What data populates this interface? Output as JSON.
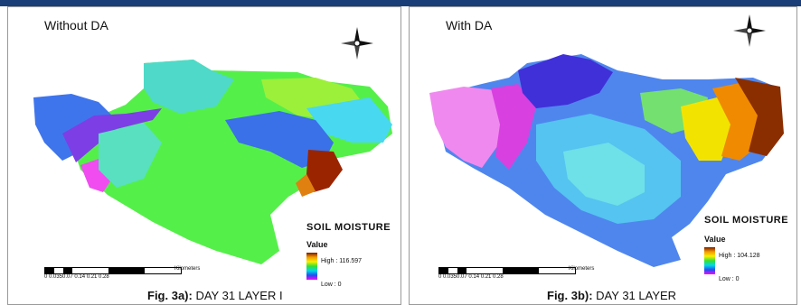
{
  "panels": [
    {
      "title": "Without DA",
      "legend_title": "SOIL MOISTURE",
      "legend_value_label": "Value",
      "legend_high": "High : 116.597",
      "legend_low": "Low : 0",
      "scale_ticks": "0 0.0350.07    0.14    0.21    0.28",
      "scale_unit": "Kilometers",
      "caption_prefix": "Fig. 3a): ",
      "caption_text": "DAY 31 LAYER I"
    },
    {
      "title": "With DA",
      "legend_title": "SOIL MOISTURE",
      "legend_value_label": "Value",
      "legend_high": "High : 104.128",
      "legend_low": "Low : 0",
      "scale_ticks": "0 0.0350.07    0.14    0.21    0.28",
      "scale_unit": "Kilometers",
      "caption_prefix": "Fig. 3b): ",
      "caption_text": "DAY 31 LAYER"
    }
  ],
  "colors": {
    "frame_border": "#9a9a9a",
    "top_strip": "#1a3f78",
    "ramp_high": "#7a1800",
    "ramp_mid1": "#f39a00",
    "ramp_mid2": "#f7f000",
    "ramp_mid3": "#34e034",
    "ramp_mid4": "#00d8e8",
    "ramp_mid5": "#2050f0",
    "ramp_low": "#ff00ff"
  },
  "icons": {
    "compass": "north-arrow-compass-rose"
  }
}
